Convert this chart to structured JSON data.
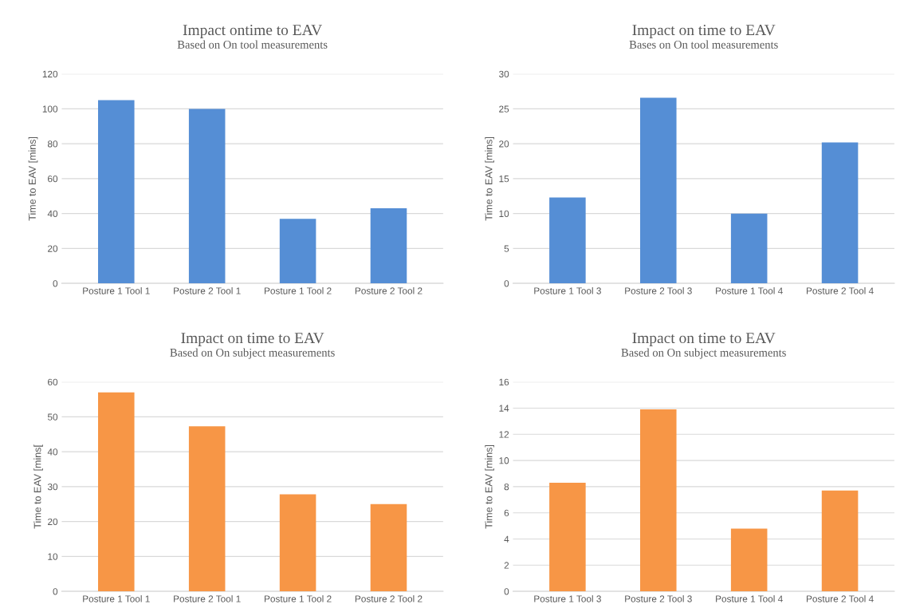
{
  "chart_data": [
    {
      "type": "bar",
      "title": "Impact ontime to EAV",
      "subtitle": "Based on On tool measurements",
      "ylabel": "Time to EAV [mins]",
      "categories": [
        "Posture 1 Tool 1",
        "Posture 2 Tool 1",
        "Posture 1 Tool 2",
        "Posture 2 Tool 2"
      ],
      "values": [
        105,
        100,
        37,
        43
      ],
      "color": "#558ed5",
      "ylim": [
        0,
        120
      ],
      "yticks": [
        0,
        20,
        40,
        60,
        80,
        100,
        120
      ],
      "grid": "y"
    },
    {
      "type": "bar",
      "title": "Impact on time to EAV",
      "subtitle": "Bases on On tool measurements",
      "ylabel": "Time to EAV [mins]",
      "categories": [
        "Posture 1 Tool 3",
        "Posture 2 Tool 3",
        "Posture 1 Tool 4",
        "Posture 2 Tool 4"
      ],
      "values": [
        12.3,
        26.6,
        10,
        20.2
      ],
      "color": "#558ed5",
      "ylim": [
        0,
        30
      ],
      "yticks": [
        0,
        5,
        10,
        15,
        20,
        25,
        30
      ],
      "grid": "y"
    },
    {
      "type": "bar",
      "title": "Impact on time to EAV",
      "subtitle": "Based on On subject measurements",
      "ylabel": "Time to EAV [mins[",
      "categories": [
        "Posture 1 Tool 1",
        "Posture 2 Tool 1",
        "Posture 1 Tool 2",
        "Posture 2 Tool 2"
      ],
      "values": [
        57,
        47.3,
        27.8,
        25
      ],
      "color": "#f79646",
      "ylim": [
        0,
        60
      ],
      "yticks": [
        0,
        10,
        20,
        30,
        40,
        50,
        60
      ],
      "grid": "y"
    },
    {
      "type": "bar",
      "title": "Impact on time to EAV",
      "subtitle": "Based on On subject measurements",
      "ylabel": "Time to EAV [mins]",
      "categories": [
        "Posture 1 Tool 3",
        "Posture 2 Tool 3",
        "Posture 1 Tool 4",
        "Posture 2 Tool 4"
      ],
      "values": [
        8.3,
        13.9,
        4.8,
        7.7
      ],
      "color": "#f79646",
      "ylim": [
        0,
        16
      ],
      "yticks": [
        0,
        2,
        4,
        6,
        8,
        10,
        12,
        14,
        16
      ],
      "grid": "y"
    }
  ]
}
